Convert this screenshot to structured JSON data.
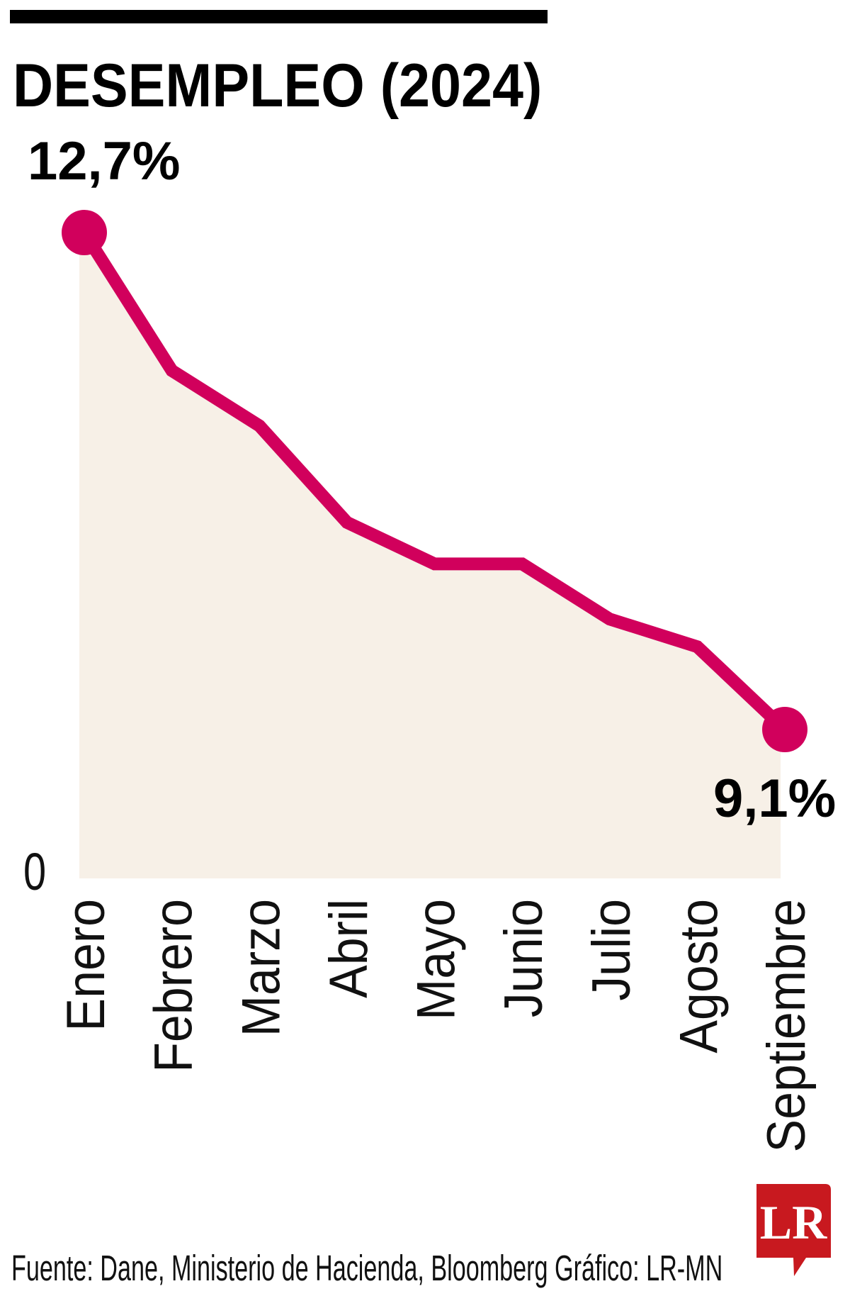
{
  "header": {
    "title": "DESEMPLEO (2024)"
  },
  "annotations": {
    "first_value": "12,7%",
    "last_value": "9,1%",
    "axis_zero": "0"
  },
  "footer": {
    "source": "Fuente: Dane, Ministerio de Hacienda, Bloomberg  Gráfico: LR-MN"
  },
  "logo": {
    "text": "LR",
    "color": "#C8191F"
  },
  "colors": {
    "line": "#D1005C",
    "area_fill": "#F7F0E7",
    "text": "#000000",
    "top_rule": "#000000"
  },
  "chart_data": {
    "type": "area",
    "title": "DESEMPLEO (2024)",
    "xlabel": "",
    "ylabel": "",
    "categories": [
      "Enero",
      "Febrero",
      "Marzo",
      "Abril",
      "Mayo",
      "Junio",
      "Julio",
      "Agosto",
      "Septiembre"
    ],
    "series": [
      {
        "name": "Desempleo (%)",
        "values": [
          12.7,
          11.7,
          11.3,
          10.6,
          10.3,
          10.3,
          9.9,
          9.7,
          9.1
        ]
      }
    ],
    "labeled_points": [
      {
        "category": "Enero",
        "label": "12,7%"
      },
      {
        "category": "Septiembre",
        "label": "9,1%"
      }
    ],
    "y_tick_labels": [
      "0"
    ],
    "grid": false,
    "legend": "none",
    "x_label_rotation": -90
  }
}
